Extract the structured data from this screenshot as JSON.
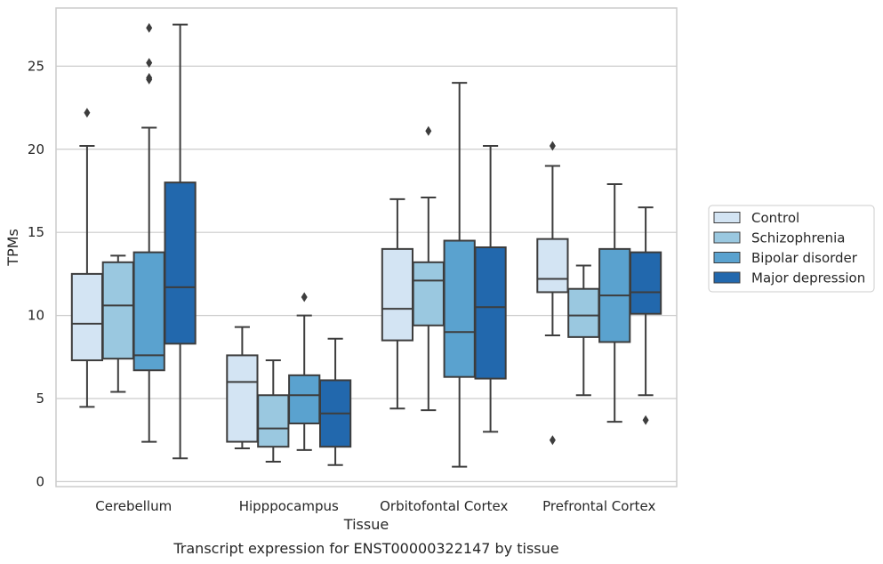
{
  "chart_data": {
    "type": "box",
    "title": "Transcript expression for ENST00000322147 by tissue",
    "xlabel": "Tissue",
    "ylabel": "TPMs",
    "ylim": [
      -0.3,
      28.5
    ],
    "yticks": [
      0,
      5,
      10,
      15,
      20,
      25
    ],
    "grid": "horizontal",
    "legend_position": "right",
    "categories": [
      "Cerebellum",
      "Hipppocampus",
      "Orbitofontal Cortex",
      "Prefrontal Cortex"
    ],
    "series": [
      {
        "name": "Control",
        "color": "#d3e4f3",
        "boxes": [
          {
            "whislo": 4.5,
            "q1": 7.3,
            "med": 9.5,
            "q3": 12.5,
            "whishi": 20.2,
            "fliers": [
              22.2
            ]
          },
          {
            "whislo": 2.0,
            "q1": 2.4,
            "med": 6.0,
            "q3": 7.6,
            "whishi": 9.3,
            "fliers": []
          },
          {
            "whislo": 4.4,
            "q1": 8.5,
            "med": 10.4,
            "q3": 14.0,
            "whishi": 17.0,
            "fliers": []
          },
          {
            "whislo": 8.8,
            "q1": 11.4,
            "med": 12.2,
            "q3": 14.6,
            "whishi": 19.0,
            "fliers": [
              20.2,
              2.5
            ]
          }
        ]
      },
      {
        "name": "Schizophrenia",
        "color": "#9ac8e0",
        "boxes": [
          {
            "whislo": 5.4,
            "q1": 7.4,
            "med": 10.6,
            "q3": 13.2,
            "whishi": 13.6,
            "fliers": []
          },
          {
            "whislo": 1.2,
            "q1": 2.1,
            "med": 3.2,
            "q3": 5.2,
            "whishi": 7.3,
            "fliers": []
          },
          {
            "whislo": 4.3,
            "q1": 9.4,
            "med": 12.1,
            "q3": 13.2,
            "whishi": 17.1,
            "fliers": [
              21.1
            ]
          },
          {
            "whislo": 5.2,
            "q1": 8.7,
            "med": 10.0,
            "q3": 11.6,
            "whishi": 13.0,
            "fliers": []
          }
        ]
      },
      {
        "name": "Bipolar disorder",
        "color": "#5aa2cf",
        "boxes": [
          {
            "whislo": 2.4,
            "q1": 6.7,
            "med": 7.6,
            "q3": 13.8,
            "whishi": 21.3,
            "fliers": [
              27.3,
              24.3,
              24.2,
              25.2
            ]
          },
          {
            "whislo": 1.9,
            "q1": 3.5,
            "med": 5.2,
            "q3": 6.4,
            "whishi": 10.0,
            "fliers": [
              11.1
            ]
          },
          {
            "whislo": 0.9,
            "q1": 6.3,
            "med": 9.0,
            "q3": 14.5,
            "whishi": 24.0,
            "fliers": []
          },
          {
            "whislo": 3.6,
            "q1": 8.4,
            "med": 11.2,
            "q3": 14.0,
            "whishi": 17.9,
            "fliers": []
          }
        ]
      },
      {
        "name": "Major depression",
        "color": "#2268ad",
        "boxes": [
          {
            "whislo": 1.4,
            "q1": 8.3,
            "med": 11.7,
            "q3": 18.0,
            "whishi": 27.5,
            "fliers": []
          },
          {
            "whislo": 1.0,
            "q1": 2.1,
            "med": 4.1,
            "q3": 6.1,
            "whishi": 8.6,
            "fliers": []
          },
          {
            "whislo": 3.0,
            "q1": 6.2,
            "med": 10.5,
            "q3": 14.1,
            "whishi": 20.2,
            "fliers": []
          },
          {
            "whislo": 5.2,
            "q1": 10.1,
            "med": 11.4,
            "q3": 13.8,
            "whishi": 16.5,
            "fliers": [
              3.7
            ]
          }
        ]
      }
    ]
  }
}
